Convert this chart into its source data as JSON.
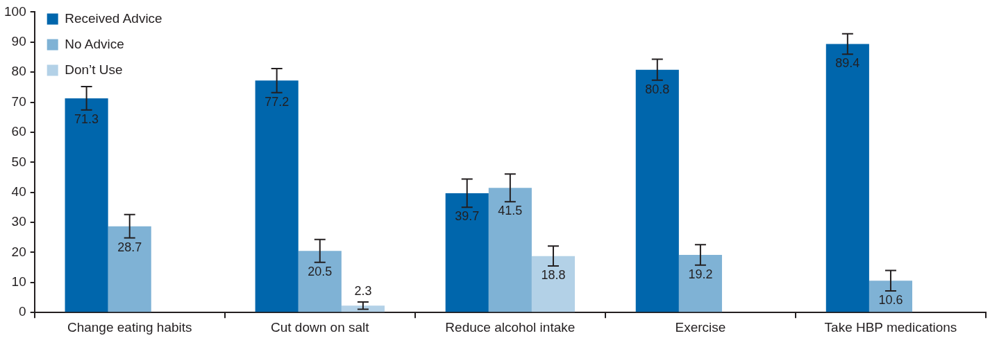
{
  "chart_data": {
    "type": "bar",
    "categories": [
      "Change eating habits",
      "Cut down on salt",
      "Reduce alcohol intake",
      "Exercise",
      "Take HBP medications"
    ],
    "series": [
      {
        "name": "Received Advice",
        "color": "#0066ac",
        "values": [
          71.3,
          77.2,
          39.7,
          80.8,
          89.4
        ],
        "errors": [
          3.9,
          4,
          4.7,
          3.5,
          3.4
        ]
      },
      {
        "name": "No Advice",
        "color": "#7fb2d5",
        "values": [
          28.7,
          20.5,
          41.5,
          19.2,
          10.6
        ],
        "errors": [
          3.9,
          3.8,
          4.6,
          3.4,
          3.4
        ]
      },
      {
        "name": "Don’t Use",
        "color": "#b3d1e7",
        "values": [
          null,
          2.3,
          18.8,
          null,
          null
        ],
        "errors": [
          null,
          1.2,
          3.3,
          null,
          null
        ]
      }
    ],
    "ylim": [
      0,
      100
    ],
    "yticks": [
      0,
      10,
      20,
      30,
      40,
      50,
      60,
      70,
      80,
      90,
      100
    ],
    "grid": false,
    "legend": "top left",
    "data_labels": true
  }
}
